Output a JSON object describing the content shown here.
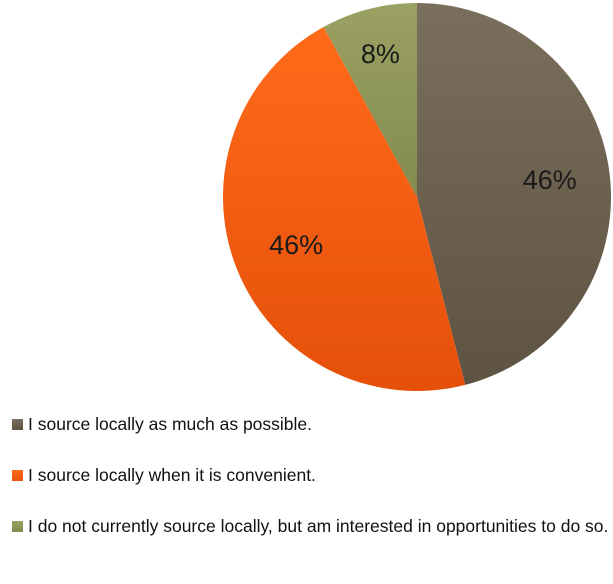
{
  "chart_data": {
    "type": "pie",
    "title": "",
    "start_angle_deg": 0,
    "direction": "clockwise",
    "slices": [
      {
        "label": "I source locally as much as possible.",
        "value": 46,
        "display": "46%",
        "color": "#6f6351",
        "gradient": [
          "#7a6e5c",
          "#5e5342"
        ]
      },
      {
        "label": "I source locally when it is convenient.",
        "value": 46,
        "display": "46%",
        "color": "#f26318",
        "gradient": [
          "#ff6a1a",
          "#e5500a"
        ]
      },
      {
        "label": "I do not currently source locally, but am interested in opportunities to do so.",
        "value": 8,
        "display": "8%",
        "color": "#8f955a",
        "gradient": [
          "#9aa162",
          "#828a4e"
        ]
      }
    ],
    "legend_position": "bottom-left"
  }
}
